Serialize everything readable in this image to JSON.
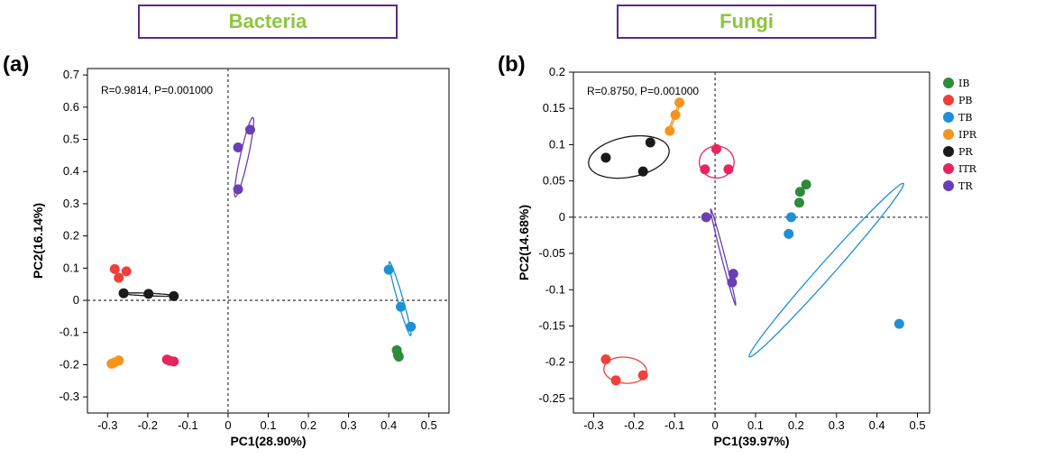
{
  "panels": [
    {
      "id": "a",
      "label": "(a)",
      "title": "Bacteria",
      "stat": "R=0.9814, P=0.001000",
      "xlabel": "PC1(28.90%)",
      "ylabel": "PC2(16.14%)",
      "xlim": [
        -0.35,
        0.55
      ],
      "ylim": [
        -0.35,
        0.72
      ],
      "xticks": [
        -0.3,
        -0.2,
        -0.1,
        0,
        0.1,
        0.2,
        0.3,
        0.4,
        0.5
      ],
      "xtick_labels": [
        "-0.3",
        "-0.2",
        "-0.1",
        "0",
        "0.1",
        "0.2",
        "0.3",
        "0.4",
        "0.5"
      ],
      "yticks": [
        -0.3,
        -0.2,
        -0.1,
        0,
        0.1,
        0.2,
        0.3,
        0.4,
        0.5,
        0.6,
        0.7
      ],
      "ytick_labels": [
        "-0.3",
        "-0.2",
        "-0.1",
        "0",
        "0.1",
        "0.2",
        "0.3",
        "0.4",
        "0.5",
        "0.6",
        "0.7"
      ]
    },
    {
      "id": "b",
      "label": "(b)",
      "title": "Fungi",
      "stat": "R=0.8750, P=0.001000",
      "xlabel": "PC1(39.97%)",
      "ylabel": "PC2(14.68%)",
      "xlim": [
        -0.35,
        0.53
      ],
      "ylim": [
        -0.27,
        0.2
      ],
      "xticks": [
        -0.3,
        -0.2,
        -0.1,
        0,
        0.1,
        0.2,
        0.3,
        0.4,
        0.5
      ],
      "xtick_labels": [
        "-0.3",
        "-0.2",
        "-0.1",
        "0",
        "0.1",
        "0.2",
        "0.3",
        "0.4",
        "0.5"
      ],
      "yticks": [
        -0.25,
        -0.2,
        -0.15,
        -0.1,
        -0.05,
        0,
        0.05,
        0.1,
        0.15,
        0.2
      ],
      "ytick_labels": [
        "-0.25",
        "-0.2",
        "-0.15",
        "-0.1",
        "-0.05",
        "0",
        "0.05",
        "0.1",
        "0.15",
        "0.2"
      ]
    }
  ],
  "legend": {
    "items": [
      {
        "name": "IB",
        "color": "#2e8b3a"
      },
      {
        "name": "PB",
        "color": "#f0403a"
      },
      {
        "name": "TB",
        "color": "#1e90d6"
      },
      {
        "name": "IPR",
        "color": "#f7941d"
      },
      {
        "name": "PR",
        "color": "#1a1a1a"
      },
      {
        "name": "ITR",
        "color": "#e8245e"
      },
      {
        "name": "TR",
        "color": "#6a3fb5"
      }
    ]
  },
  "chart_data": [
    {
      "type": "scatter",
      "title": "Bacteria",
      "xlabel": "PC1(28.90%)",
      "ylabel": "PC2(16.14%)",
      "annotation": "R=0.9814, P=0.001000",
      "series": [
        {
          "name": "IB",
          "color": "#2e8b3a",
          "points": [
            [
              0.42,
              -0.155
            ],
            [
              0.423,
              -0.17
            ],
            [
              0.425,
              -0.175
            ]
          ],
          "ellipse": null
        },
        {
          "name": "PB",
          "color": "#f0403a",
          "points": [
            [
              -0.282,
              0.097
            ],
            [
              -0.272,
              0.07
            ],
            [
              -0.253,
              0.09
            ]
          ],
          "ellipse": null
        },
        {
          "name": "TB",
          "color": "#1e90d6",
          "points": [
            [
              0.4,
              0.095
            ],
            [
              0.43,
              -0.02
            ],
            [
              0.455,
              -0.082
            ]
          ],
          "ellipse": {
            "cx": 0.428,
            "cy": 0.005,
            "rx": 0.118,
            "ry": 0.007,
            "angle": -77
          }
        },
        {
          "name": "IPR",
          "color": "#f7941d",
          "points": [
            [
              -0.29,
              -0.197
            ],
            [
              -0.283,
              -0.193
            ],
            [
              -0.272,
              -0.187
            ]
          ],
          "ellipse": null
        },
        {
          "name": "PR",
          "color": "#1a1a1a",
          "points": [
            [
              -0.26,
              0.022
            ],
            [
              -0.198,
              0.02
            ],
            [
              -0.135,
              0.013
            ]
          ],
          "ellipse": {
            "cx": -0.198,
            "cy": 0.018,
            "rx": 0.063,
            "ry": 0.004,
            "angle": -3
          }
        },
        {
          "name": "ITR",
          "color": "#e8245e",
          "points": [
            [
              -0.152,
              -0.184
            ],
            [
              -0.145,
              -0.188
            ],
            [
              -0.135,
              -0.19
            ]
          ],
          "ellipse": null
        },
        {
          "name": "TR",
          "color": "#6a3fb5",
          "points": [
            [
              0.025,
              0.475
            ],
            [
              0.055,
              0.53
            ],
            [
              0.025,
              0.345
            ]
          ],
          "ellipse": {
            "cx": 0.04,
            "cy": 0.445,
            "rx": 0.125,
            "ry": 0.01,
            "angle": 80
          }
        }
      ]
    },
    {
      "type": "scatter",
      "title": "Fungi",
      "xlabel": "PC1(39.97%)",
      "ylabel": "PC2(14.68%)",
      "annotation": "R=0.8750, P=0.001000",
      "series": [
        {
          "name": "IB",
          "color": "#2e8b3a",
          "points": [
            [
              0.225,
              0.045
            ],
            [
              0.21,
              0.035
            ],
            [
              0.208,
              0.02
            ]
          ],
          "ellipse": null
        },
        {
          "name": "PB",
          "color": "#f0403a",
          "points": [
            [
              -0.27,
              -0.196
            ],
            [
              -0.245,
              -0.225
            ],
            [
              -0.178,
              -0.218
            ]
          ],
          "ellipse": {
            "cx": -0.222,
            "cy": -0.211,
            "rx": 0.053,
            "ry": 0.018,
            "angle": -2
          }
        },
        {
          "name": "TB",
          "color": "#1e90d6",
          "points": [
            [
              0.188,
              0.0
            ],
            [
              0.182,
              -0.023
            ],
            [
              0.455,
              -0.147
            ]
          ],
          "ellipse": {
            "cx": 0.275,
            "cy": -0.073,
            "rx": 0.225,
            "ry": 0.013,
            "angle": 32
          }
        },
        {
          "name": "IPR",
          "color": "#f7941d",
          "points": [
            [
              -0.112,
              0.119
            ],
            [
              -0.098,
              0.141
            ],
            [
              -0.088,
              0.158
            ]
          ],
          "ellipse": {
            "cx": -0.1,
            "cy": 0.139,
            "rx": 0.028,
            "ry": 0.002,
            "angle": 55
          }
        },
        {
          "name": "PR",
          "color": "#1a1a1a",
          "points": [
            [
              -0.27,
              0.082
            ],
            [
              -0.178,
              0.063
            ],
            [
              -0.16,
              0.103
            ]
          ],
          "ellipse": {
            "cx": -0.213,
            "cy": 0.083,
            "rx": 0.1,
            "ry": 0.028,
            "angle": 5
          }
        },
        {
          "name": "ITR",
          "color": "#e8245e",
          "points": [
            [
              -0.025,
              0.066
            ],
            [
              0.003,
              0.094
            ],
            [
              0.033,
              0.066
            ]
          ],
          "ellipse": {
            "cx": 0.004,
            "cy": 0.076,
            "rx": 0.043,
            "ry": 0.022,
            "angle": 0
          }
        },
        {
          "name": "TR",
          "color": "#6a3fb5",
          "points": [
            [
              -0.022,
              0.0
            ],
            [
              0.045,
              -0.078
            ],
            [
              0.042,
              -0.09
            ]
          ],
          "ellipse": {
            "cx": 0.02,
            "cy": -0.055,
            "rx": 0.073,
            "ry": 0.004,
            "angle": -65
          }
        }
      ]
    }
  ]
}
